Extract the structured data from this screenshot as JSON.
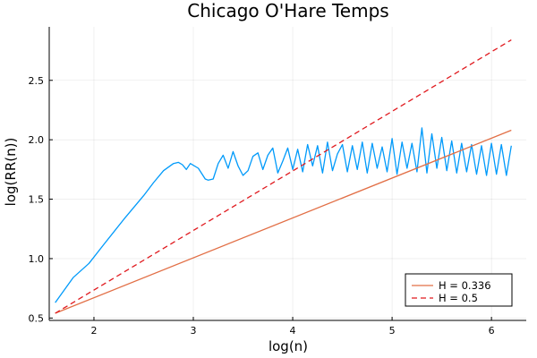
{
  "chart_data": {
    "type": "line",
    "title": "Chicago O'Hare Temps",
    "xlabel": "log(n)",
    "ylabel": "log(RR(n))",
    "xlim": [
      1.55,
      6.35
    ],
    "ylim": [
      0.48,
      2.95
    ],
    "xticks": [
      2,
      3,
      4,
      5,
      6
    ],
    "yticks": [
      0.5,
      1.0,
      1.5,
      2.0,
      2.5
    ],
    "ytick_labels": [
      "0.5",
      "1.0",
      "1.5",
      "2.0",
      "2.5"
    ],
    "xtick_labels": [
      "2",
      "3",
      "4",
      "5",
      "6"
    ],
    "grid": true,
    "legend_placement": "bottom-right",
    "series": [
      {
        "name": "",
        "color": "#009AFA",
        "style": "solid",
        "x": [
          1.61,
          1.79,
          1.95,
          2.1,
          2.3,
          2.5,
          2.6,
          2.7,
          2.8,
          2.85,
          2.89,
          2.93,
          2.97,
          3.05,
          3.12,
          3.15,
          3.2,
          3.25,
          3.3,
          3.35,
          3.4,
          3.45,
          3.5,
          3.55,
          3.6,
          3.65,
          3.7,
          3.75,
          3.8,
          3.85,
          3.9,
          3.95,
          4.0,
          4.05,
          4.1,
          4.15,
          4.2,
          4.25,
          4.3,
          4.35,
          4.4,
          4.45,
          4.5,
          4.55,
          4.6,
          4.65,
          4.7,
          4.75,
          4.8,
          4.85,
          4.9,
          4.95,
          5.0,
          5.05,
          5.1,
          5.15,
          5.2,
          5.25,
          5.3,
          5.35,
          5.4,
          5.45,
          5.5,
          5.55,
          5.6,
          5.65,
          5.7,
          5.75,
          5.8,
          5.85,
          5.9,
          5.95,
          6.0,
          6.05,
          6.1,
          6.15,
          6.2
        ],
        "y": [
          0.63,
          0.84,
          0.96,
          1.12,
          1.33,
          1.53,
          1.64,
          1.74,
          1.8,
          1.81,
          1.79,
          1.75,
          1.8,
          1.76,
          1.67,
          1.66,
          1.67,
          1.8,
          1.87,
          1.76,
          1.9,
          1.78,
          1.7,
          1.74,
          1.86,
          1.89,
          1.75,
          1.87,
          1.93,
          1.72,
          1.82,
          1.93,
          1.75,
          1.92,
          1.73,
          1.96,
          1.78,
          1.95,
          1.72,
          1.98,
          1.74,
          1.88,
          1.96,
          1.73,
          1.95,
          1.75,
          1.98,
          1.72,
          1.97,
          1.76,
          1.94,
          1.73,
          2.01,
          1.71,
          1.98,
          1.76,
          1.97,
          1.73,
          2.1,
          1.72,
          2.05,
          1.76,
          2.02,
          1.74,
          1.99,
          1.72,
          1.97,
          1.73,
          1.96,
          1.71,
          1.95,
          1.7,
          1.97,
          1.71,
          1.96,
          1.7,
          1.95
        ]
      },
      {
        "name": "H = 0.336",
        "color": "#E26F46",
        "style": "solid",
        "x": [
          1.61,
          6.2
        ],
        "y": [
          0.54,
          2.08
        ]
      },
      {
        "name": "H = 0.5",
        "color": "#E0191E",
        "style": "dashed",
        "x": [
          1.61,
          6.2
        ],
        "y": [
          0.54,
          2.84
        ]
      }
    ]
  }
}
